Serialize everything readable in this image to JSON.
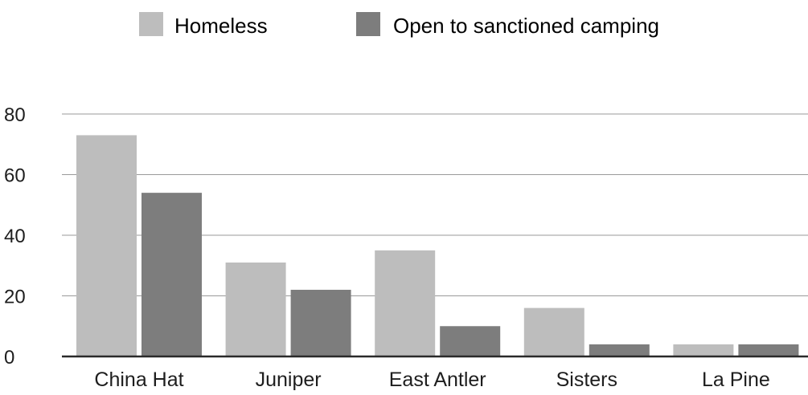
{
  "chart_data": {
    "type": "bar",
    "categories": [
      "China Hat",
      "Juniper",
      "East Antler",
      "Sisters",
      "La Pine"
    ],
    "series": [
      {
        "name": "Homeless",
        "values": [
          73,
          31,
          35,
          16,
          4
        ],
        "color": "#bdbdbd"
      },
      {
        "name": "Open to sanctioned camping",
        "values": [
          54,
          22,
          10,
          4,
          4
        ],
        "color": "#7d7d7d"
      }
    ],
    "yticks": [
      "0",
      "20",
      "40",
      "60",
      "80"
    ],
    "ylim": [
      0,
      80
    ],
    "grid": true,
    "legend_position": "top"
  }
}
